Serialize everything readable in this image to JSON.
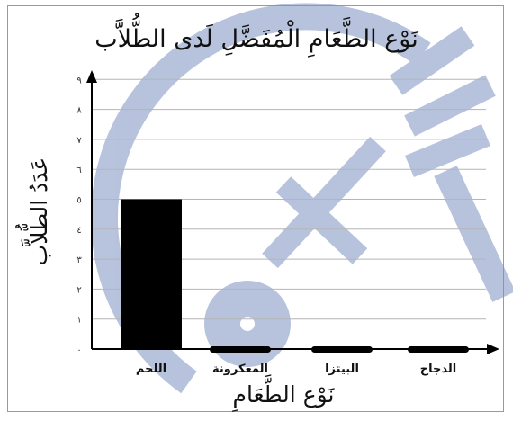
{
  "chart_data": {
    "type": "bar",
    "title": "نَوْع الطَّعَامِ الْمُفَضَّلِ لَدى الطُّلاَّب",
    "xlabel": "نَوْع الطَّعَامِ",
    "ylabel": "عَدَدُ الطُّلاَّب",
    "categories": [
      "اللحم",
      "المعكرونة",
      "البيتزا",
      "الدجاج"
    ],
    "values": [
      5,
      0,
      0,
      0
    ],
    "ylim": [
      0,
      9
    ],
    "yticks": [
      "٠",
      "١",
      "٢",
      "٣",
      "٤",
      "٥",
      "٦",
      "٧",
      "٨",
      "٩"
    ],
    "grid": true,
    "bar_color": "#000000"
  }
}
